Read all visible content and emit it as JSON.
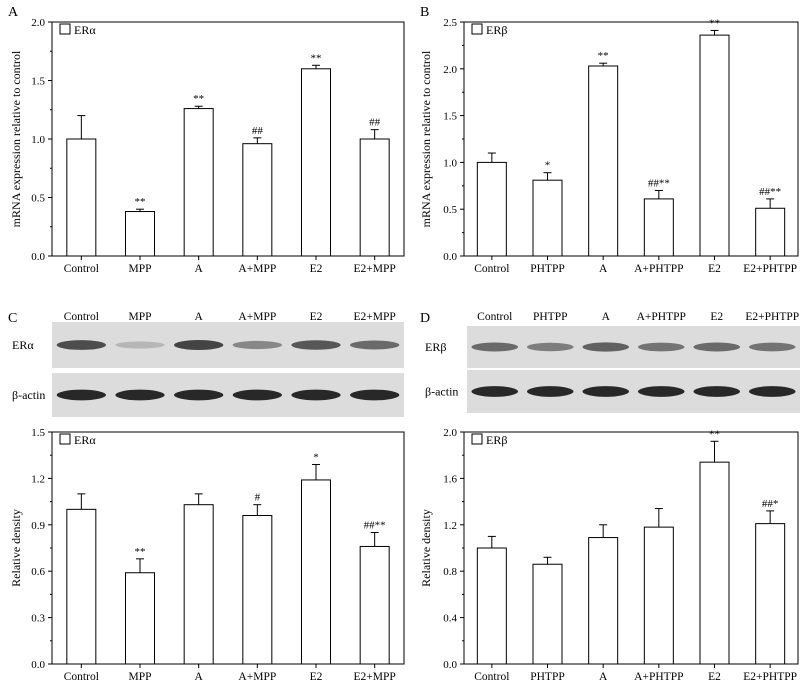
{
  "colors": {
    "bar_fill": "#ffffff",
    "bar_stroke": "#000000",
    "blot_bg": "#dcdcdc",
    "blot_band": "#1e1e1e"
  },
  "blots": [
    {
      "panel": "C",
      "lanes": [
        "Control",
        "MPP",
        "A",
        "A+MPP",
        "E2",
        "E2+MPP"
      ],
      "rows": [
        {
          "label": "ERα",
          "band_intensity": [
            0.75,
            0.2,
            0.8,
            0.45,
            0.7,
            0.6
          ]
        },
        {
          "label": "β-actin",
          "band_intensity": [
            0.95,
            0.95,
            0.95,
            0.95,
            0.95,
            0.95
          ]
        }
      ]
    },
    {
      "panel": "D",
      "lanes": [
        "Control",
        "PHTPP",
        "A",
        "A+PHTPP",
        "E2",
        "E2+PHTPP"
      ],
      "rows": [
        {
          "label": "ERβ",
          "band_intensity": [
            0.6,
            0.5,
            0.65,
            0.55,
            0.6,
            0.55
          ]
        },
        {
          "label": "β-actin",
          "band_intensity": [
            0.95,
            0.95,
            0.95,
            0.95,
            0.95,
            0.95
          ]
        }
      ]
    }
  ],
  "chart_data": [
    {
      "type": "bar",
      "panel": "A",
      "legend": "ERα",
      "ylabel": "mRNA expression relative to control",
      "categories": [
        "Control",
        "MPP",
        "A",
        "A+MPP",
        "E2",
        "E2+MPP"
      ],
      "values": [
        1.0,
        0.38,
        1.26,
        0.96,
        1.6,
        1.0
      ],
      "errors": [
        0.2,
        0.02,
        0.02,
        0.05,
        0.03,
        0.08
      ],
      "annotations": [
        "",
        "**",
        "**",
        "##",
        "**",
        "##"
      ],
      "ylim": [
        0,
        2.0
      ],
      "yticks": [
        "0.0",
        "0.5",
        "1.0",
        "1.5",
        "2.0"
      ]
    },
    {
      "type": "bar",
      "panel": "B",
      "legend": "ERβ",
      "ylabel": "mRNA expression relative to control",
      "categories": [
        "Control",
        "PHTPP",
        "A",
        "A+PHTPP",
        "E2",
        "E2+PHTPP"
      ],
      "values": [
        1.0,
        0.81,
        2.03,
        0.61,
        2.36,
        0.51
      ],
      "errors": [
        0.1,
        0.08,
        0.03,
        0.09,
        0.05,
        0.1
      ],
      "annotations": [
        "",
        "*",
        "**",
        "##**",
        "**",
        "##**"
      ],
      "ylim": [
        0,
        2.5
      ],
      "yticks": [
        "0.0",
        "0.5",
        "1.0",
        "1.5",
        "2.0",
        "2.5"
      ]
    },
    {
      "type": "bar",
      "panel": "C",
      "legend": "ERα",
      "ylabel": "Relative density",
      "categories": [
        "Control",
        "MPP",
        "A",
        "A+MPP",
        "E2",
        "E2+MPP"
      ],
      "values": [
        1.0,
        0.59,
        1.03,
        0.96,
        1.19,
        0.76
      ],
      "errors": [
        0.1,
        0.09,
        0.07,
        0.07,
        0.1,
        0.09
      ],
      "annotations": [
        "",
        "**",
        "",
        "#",
        "*",
        "##**"
      ],
      "ylim": [
        0,
        1.5
      ],
      "yticks": [
        "0.0",
        "0.3",
        "0.6",
        "0.9",
        "1.2",
        "1.5"
      ]
    },
    {
      "type": "bar",
      "panel": "D",
      "legend": "ERβ",
      "ylabel": "Relative density",
      "categories": [
        "Control",
        "PHTPP",
        "A",
        "A+PHTPP",
        "E2",
        "E2+PHTPP"
      ],
      "values": [
        1.0,
        0.86,
        1.09,
        1.18,
        1.74,
        1.21
      ],
      "errors": [
        0.1,
        0.06,
        0.11,
        0.16,
        0.18,
        0.11
      ],
      "annotations": [
        "",
        "",
        "",
        "",
        "**",
        "##*"
      ],
      "ylim": [
        0,
        2.0
      ],
      "yticks": [
        "0.0",
        "0.4",
        "0.8",
        "1.2",
        "1.6",
        "2.0"
      ]
    }
  ]
}
